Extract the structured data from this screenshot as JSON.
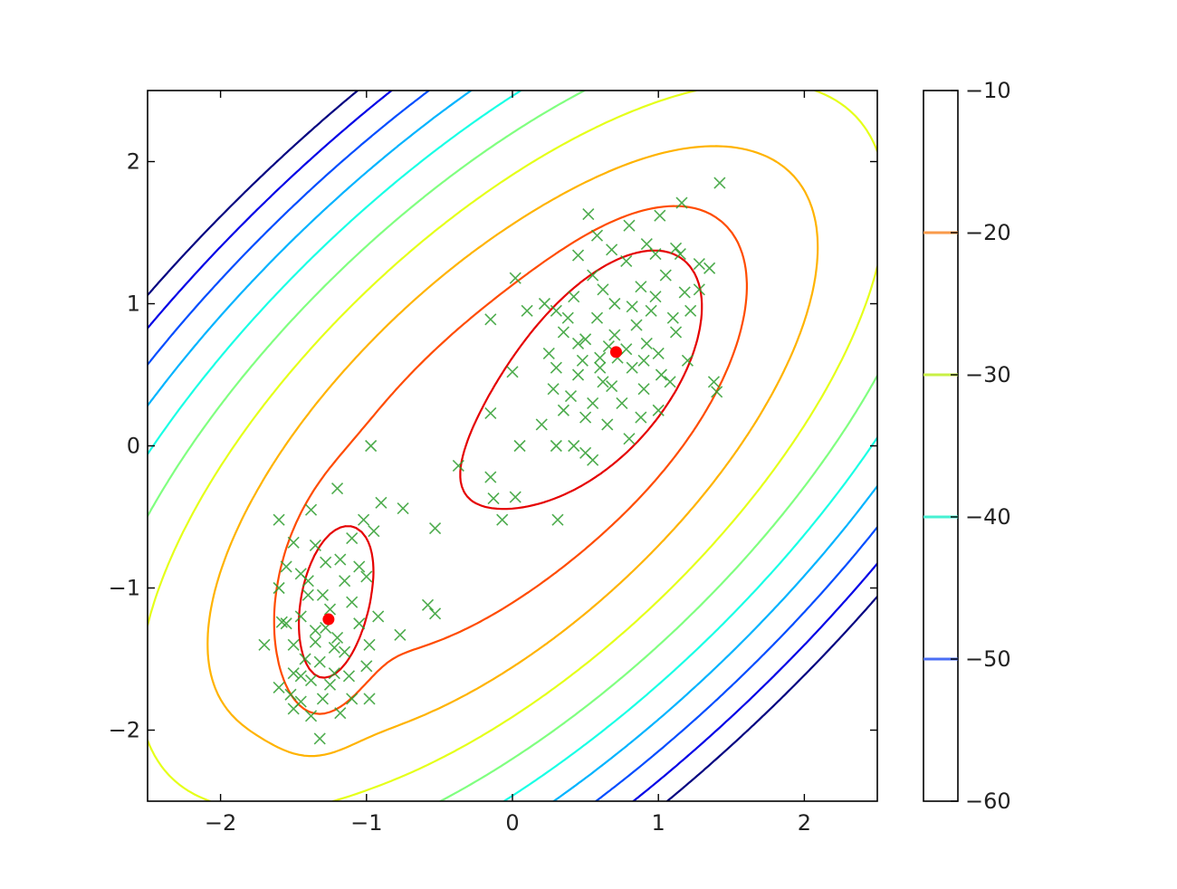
{
  "chart_data": {
    "type": "contour",
    "title": "",
    "xlabel": "",
    "ylabel": "",
    "xlim": [
      -2.5,
      2.5
    ],
    "ylim": [
      -2.5,
      2.5
    ],
    "x_ticks": [
      -2,
      -1,
      0,
      1,
      2
    ],
    "x_tick_labels": [
      "−2",
      "−1",
      "0",
      "1",
      "2"
    ],
    "y_ticks": [
      -2,
      -1,
      0,
      1,
      2
    ],
    "y_tick_labels": [
      "−2",
      "−1",
      "0",
      "1",
      "2"
    ],
    "grid": false,
    "colormap": "jet",
    "contour_levels": [
      -60,
      -55,
      -50,
      -45,
      -40,
      -35,
      -30,
      -25,
      -20,
      -15
    ],
    "colorbar": {
      "range": [
        -60,
        -10
      ],
      "ticks": [
        -10,
        -20,
        -30,
        -40,
        -50,
        -60
      ],
      "tick_labels": [
        "−10",
        "−20",
        "−30",
        "−40",
        "−50",
        "−60"
      ],
      "level_lines": [
        {
          "value": -20,
          "color": "#f99a4a"
        },
        {
          "value": -30,
          "color": "#c8f046"
        },
        {
          "value": -40,
          "color": "#46f0d2"
        },
        {
          "value": -50,
          "color": "#4a6ef5"
        }
      ]
    },
    "components": [
      {
        "mean": [
          0.71,
          0.66
        ],
        "marker_color": "#ff0000"
      },
      {
        "mean": [
          -1.26,
          -1.22
        ],
        "marker_color": "#ff0000"
      }
    ],
    "samples": {
      "marker": "x",
      "color": "#2f9e2f",
      "points": [
        [
          1.42,
          1.85
        ],
        [
          0.52,
          1.63
        ],
        [
          1.16,
          1.71
        ],
        [
          0.8,
          1.55
        ],
        [
          1.01,
          1.62
        ],
        [
          0.58,
          1.48
        ],
        [
          0.92,
          1.42
        ],
        [
          1.12,
          1.39
        ],
        [
          0.45,
          1.34
        ],
        [
          0.68,
          1.38
        ],
        [
          1.28,
          1.28
        ],
        [
          1.35,
          1.25
        ],
        [
          0.02,
          1.18
        ],
        [
          0.1,
          0.95
        ],
        [
          -0.15,
          0.89
        ],
        [
          0.3,
          0.95
        ],
        [
          0.42,
          1.05
        ],
        [
          0.55,
          1.2
        ],
        [
          0.62,
          1.1
        ],
        [
          0.78,
          1.3
        ],
        [
          0.88,
          1.12
        ],
        [
          1.05,
          1.2
        ],
        [
          1.18,
          1.08
        ],
        [
          1.22,
          0.95
        ],
        [
          0.95,
          0.95
        ],
        [
          0.58,
          0.9
        ],
        [
          0.5,
          0.75
        ],
        [
          0.35,
          0.8
        ],
        [
          0.25,
          0.65
        ],
        [
          0.3,
          0.55
        ],
        [
          0.45,
          0.5
        ],
        [
          0.6,
          0.55
        ],
        [
          0.82,
          0.55
        ],
        [
          1.0,
          0.65
        ],
        [
          1.12,
          0.8
        ],
        [
          1.2,
          0.6
        ],
        [
          1.08,
          0.45
        ],
        [
          0.9,
          0.4
        ],
        [
          0.75,
          0.3
        ],
        [
          0.55,
          0.3
        ],
        [
          0.4,
          0.35
        ],
        [
          0.28,
          0.4
        ],
        [
          1.38,
          0.45
        ],
        [
          1.4,
          0.38
        ],
        [
          0.0,
          0.52
        ],
        [
          0.5,
          0.2
        ],
        [
          0.65,
          0.15
        ],
        [
          0.88,
          0.2
        ],
        [
          1.0,
          0.25
        ],
        [
          0.8,
          0.05
        ],
        [
          0.2,
          0.15
        ],
        [
          0.3,
          0.0
        ],
        [
          0.42,
          0.0
        ],
        [
          0.05,
          0.0
        ],
        [
          0.5,
          -0.05
        ],
        [
          0.55,
          -0.1
        ],
        [
          -0.15,
          0.23
        ],
        [
          0.62,
          0.45
        ],
        [
          0.7,
          0.78
        ],
        [
          0.85,
          0.85
        ],
        [
          0.72,
          0.62
        ],
        [
          0.66,
          0.7
        ],
        [
          0.78,
          0.68
        ],
        [
          0.6,
          0.62
        ],
        [
          0.92,
          0.72
        ],
        [
          1.1,
          0.9
        ],
        [
          0.48,
          0.6
        ],
        [
          0.38,
          0.9
        ],
        [
          0.22,
          1.0
        ],
        [
          1.28,
          1.1
        ],
        [
          1.15,
          1.35
        ],
        [
          0.98,
          1.35
        ],
        [
          0.7,
          1.0
        ],
        [
          0.82,
          0.98
        ],
        [
          0.98,
          1.05
        ],
        [
          0.68,
          0.42
        ],
        [
          0.35,
          0.25
        ],
        [
          1.02,
          0.5
        ],
        [
          0.9,
          0.6
        ],
        [
          0.45,
          0.72
        ],
        [
          -0.97,
          0.0
        ],
        [
          -0.37,
          -0.14
        ],
        [
          -0.15,
          -0.22
        ],
        [
          -0.13,
          -0.37
        ],
        [
          0.02,
          -0.36
        ],
        [
          -0.07,
          -0.52
        ],
        [
          0.31,
          -0.52
        ],
        [
          -0.53,
          -0.58
        ],
        [
          -0.75,
          -0.44
        ],
        [
          -0.9,
          -0.4
        ],
        [
          -0.58,
          -1.12
        ],
        [
          -0.53,
          -1.18
        ],
        [
          -0.77,
          -1.33
        ],
        [
          -1.2,
          -0.3
        ],
        [
          -1.38,
          -0.45
        ],
        [
          -1.6,
          -0.52
        ],
        [
          -1.02,
          -0.52
        ],
        [
          -0.95,
          -0.6
        ],
        [
          -1.1,
          -0.65
        ],
        [
          -1.5,
          -0.68
        ],
        [
          -1.35,
          -0.7
        ],
        [
          -1.55,
          -0.85
        ],
        [
          -1.45,
          -0.9
        ],
        [
          -1.28,
          -0.82
        ],
        [
          -1.18,
          -0.8
        ],
        [
          -1.05,
          -0.85
        ],
        [
          -1.0,
          -0.92
        ],
        [
          -1.6,
          -1.0
        ],
        [
          -1.4,
          -1.05
        ],
        [
          -1.3,
          -1.05
        ],
        [
          -1.1,
          -1.1
        ],
        [
          -1.05,
          -1.25
        ],
        [
          -1.55,
          -1.25
        ],
        [
          -1.45,
          -1.2
        ],
        [
          -1.35,
          -1.3
        ],
        [
          -1.2,
          -1.35
        ],
        [
          -1.15,
          -1.45
        ],
        [
          -1.5,
          -1.4
        ],
        [
          -1.42,
          -1.5
        ],
        [
          -1.32,
          -1.52
        ],
        [
          -1.22,
          -1.6
        ],
        [
          -1.12,
          -1.62
        ],
        [
          -1.0,
          -1.55
        ],
        [
          -1.5,
          -1.6
        ],
        [
          -1.38,
          -1.65
        ],
        [
          -1.25,
          -1.68
        ],
        [
          -1.6,
          -1.7
        ],
        [
          -1.52,
          -1.75
        ],
        [
          -1.45,
          -1.8
        ],
        [
          -1.5,
          -1.85
        ],
        [
          -1.38,
          -1.9
        ],
        [
          -1.3,
          -1.78
        ],
        [
          -1.1,
          -1.78
        ],
        [
          -1.18,
          -1.88
        ],
        [
          -0.98,
          -1.78
        ],
        [
          -1.32,
          -2.06
        ],
        [
          -1.7,
          -1.4
        ],
        [
          -1.58,
          -1.24
        ],
        [
          -1.4,
          -0.95
        ],
        [
          -0.92,
          -1.2
        ],
        [
          -0.98,
          -1.4
        ],
        [
          -1.25,
          -1.15
        ],
        [
          -1.28,
          -1.28
        ],
        [
          -1.35,
          -1.38
        ],
        [
          -1.22,
          -1.42
        ],
        [
          -1.15,
          -0.95
        ],
        [
          -1.45,
          -1.62
        ]
      ]
    }
  }
}
